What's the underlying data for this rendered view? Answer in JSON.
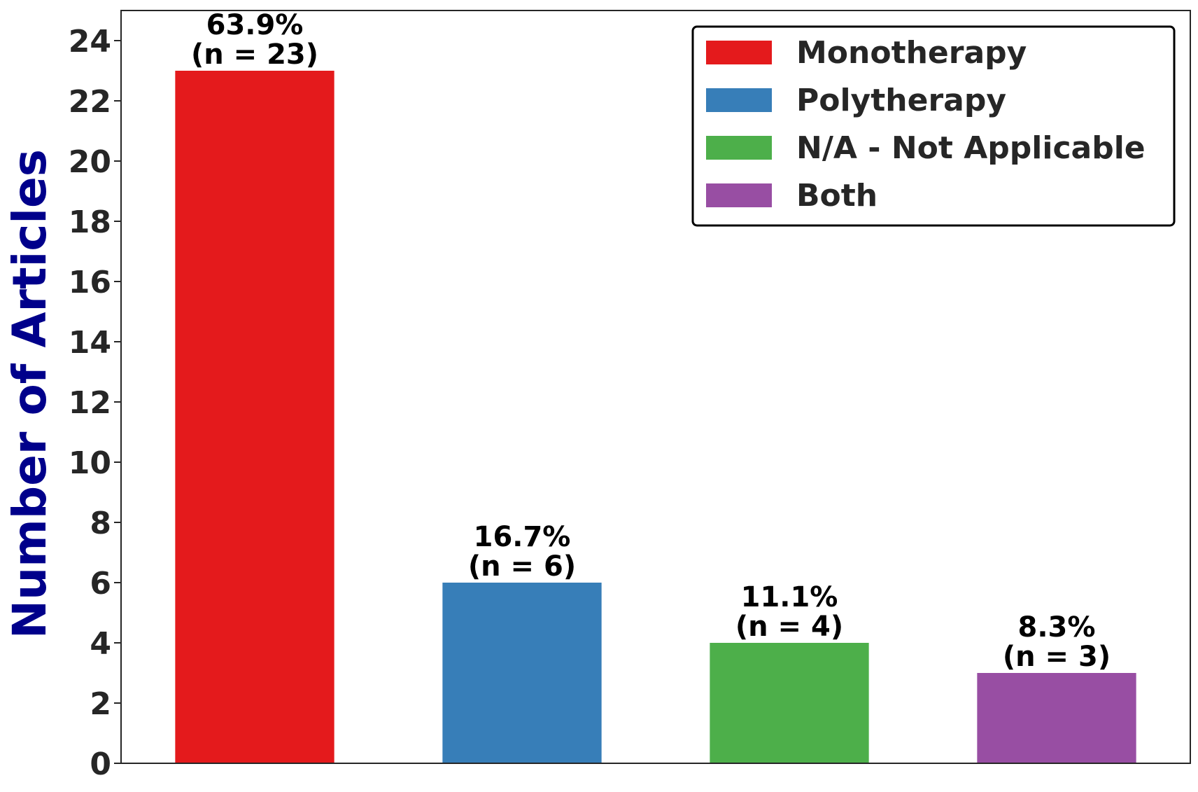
{
  "chart_data": {
    "type": "bar",
    "categories": [
      "Monotherapy",
      "Polytherapy",
      "N/A - Not Applicable",
      "Both"
    ],
    "values": [
      23,
      6,
      4,
      3
    ],
    "percent_labels": [
      "63.9%",
      "16.7%",
      "11.1%",
      "8.3%"
    ],
    "count_labels": [
      "(n = 23)",
      "(n = 6)",
      "(n = 4)",
      "(n = 3)"
    ],
    "colors": [
      "#e41a1c",
      "#377eb8",
      "#4daf4a",
      "#984ea3"
    ],
    "title": "",
    "xlabel": "",
    "ylabel": "Number of Articles",
    "ylabel_color": "#00008b",
    "ylim": [
      0,
      25
    ],
    "yticks": [
      0,
      2,
      4,
      6,
      8,
      10,
      12,
      14,
      16,
      18,
      20,
      22,
      24
    ],
    "grid": false,
    "legend": {
      "placement": "top-right",
      "entries": [
        "Monotherapy",
        "Polytherapy",
        "N/A - Not Applicable",
        "Both"
      ]
    }
  }
}
